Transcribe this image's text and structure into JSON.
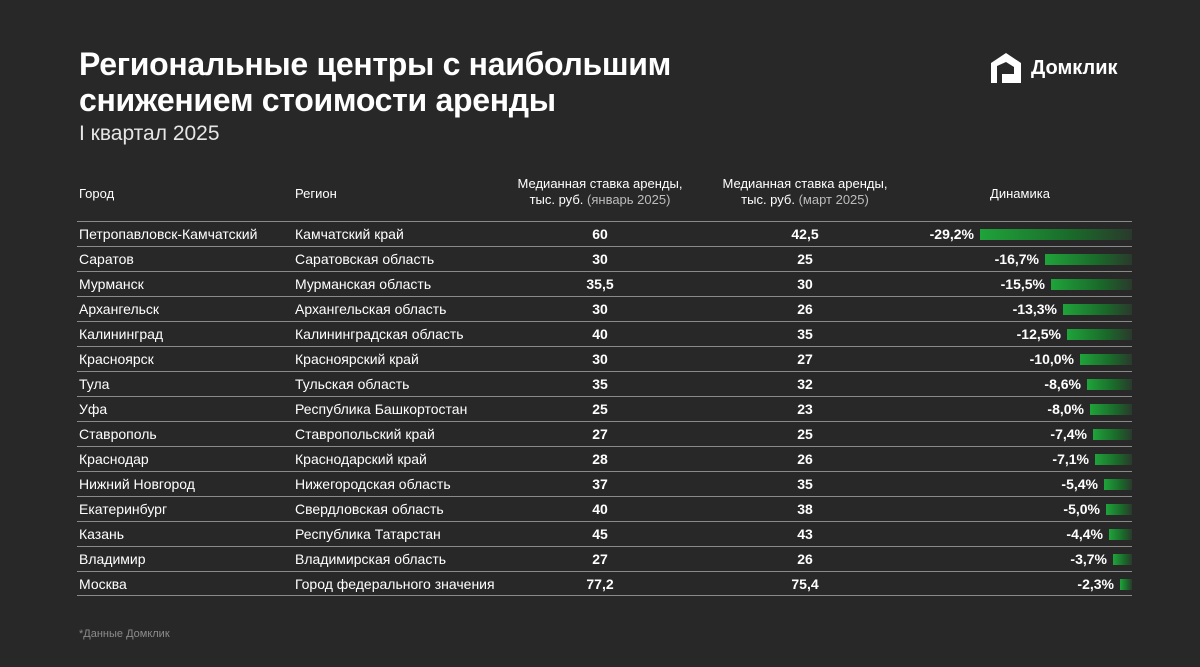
{
  "header": {
    "title_line1": "Региональные центры с наибольшим",
    "title_line2": "снижением стоимости аренды",
    "subtitle": "I квартал 2025",
    "logo_text": "Домклик"
  },
  "table_header": {
    "city": "Город",
    "region": "Регион",
    "jan_line1": "Медианная ставка аренды,",
    "jan_line2_a": "тыс. руб.",
    "jan_line2_b": "(январь 2025)",
    "mar_line1": "Медианная ставка аренды,",
    "mar_line2_a": "тыс. руб.",
    "mar_line2_b": "(март 2025)",
    "dynamics": "Динамика"
  },
  "footnote": "*Данные Домклик",
  "colors": {
    "background": "#282828",
    "bar": "#1fa33a",
    "rule": "#8a8a8a"
  },
  "chart_data": {
    "type": "table",
    "title": "Региональные центры с наибольшим снижением стоимости аренды",
    "subtitle": "I квартал 2025",
    "columns": [
      "Город",
      "Регион",
      "Медианная ставка аренды, тыс. руб. (январь 2025)",
      "Медианная ставка аренды, тыс. руб. (март 2025)",
      "Динамика"
    ],
    "rows": [
      {
        "city": "Петропавловск-Камчатский",
        "region": "Камчатский край",
        "jan": "60",
        "mar": "42,5",
        "change_label": "-29,2%",
        "change": -29.2
      },
      {
        "city": "Саратов",
        "region": "Саратовская область",
        "jan": "30",
        "mar": "25",
        "change_label": "-16,7%",
        "change": -16.7
      },
      {
        "city": "Мурманск",
        "region": "Мурманская область",
        "jan": "35,5",
        "mar": "30",
        "change_label": "-15,5%",
        "change": -15.5
      },
      {
        "city": "Архангельск",
        "region": "Архангельская область",
        "jan": "30",
        "mar": "26",
        "change_label": "-13,3%",
        "change": -13.3
      },
      {
        "city": "Калининград",
        "region": "Калининградская область",
        "jan": "40",
        "mar": "35",
        "change_label": "-12,5%",
        "change": -12.5
      },
      {
        "city": "Красноярск",
        "region": "Красноярский край",
        "jan": "30",
        "mar": "27",
        "change_label": "-10,0%",
        "change": -10.0
      },
      {
        "city": "Тула",
        "region": "Тульская область",
        "jan": "35",
        "mar": "32",
        "change_label": "-8,6%",
        "change": -8.6
      },
      {
        "city": "Уфа",
        "region": "Республика Башкортостан",
        "jan": "25",
        "mar": "23",
        "change_label": "-8,0%",
        "change": -8.0
      },
      {
        "city": "Ставрополь",
        "region": "Ставропольский край",
        "jan": "27",
        "mar": "25",
        "change_label": "-7,4%",
        "change": -7.4
      },
      {
        "city": "Краснодар",
        "region": "Краснодарский край",
        "jan": "28",
        "mar": "26",
        "change_label": "-7,1%",
        "change": -7.1
      },
      {
        "city": "Нижний Новгород",
        "region": "Нижегородская область",
        "jan": "37",
        "mar": "35",
        "change_label": "-5,4%",
        "change": -5.4
      },
      {
        "city": "Екатеринбург",
        "region": "Свердловская область",
        "jan": "40",
        "mar": "38",
        "change_label": "-5,0%",
        "change": -5.0
      },
      {
        "city": "Казань",
        "region": "Республика Татарстан",
        "jan": "45",
        "mar": "43",
        "change_label": "-4,4%",
        "change": -4.4
      },
      {
        "city": "Владимир",
        "region": "Владимирская область",
        "jan": "27",
        "mar": "26",
        "change_label": "-3,7%",
        "change": -3.7
      },
      {
        "city": "Москва",
        "region": "Город федерального значения",
        "jan": "77,2",
        "mar": "75,4",
        "change_label": "-2,3%",
        "change": -2.3
      }
    ]
  }
}
